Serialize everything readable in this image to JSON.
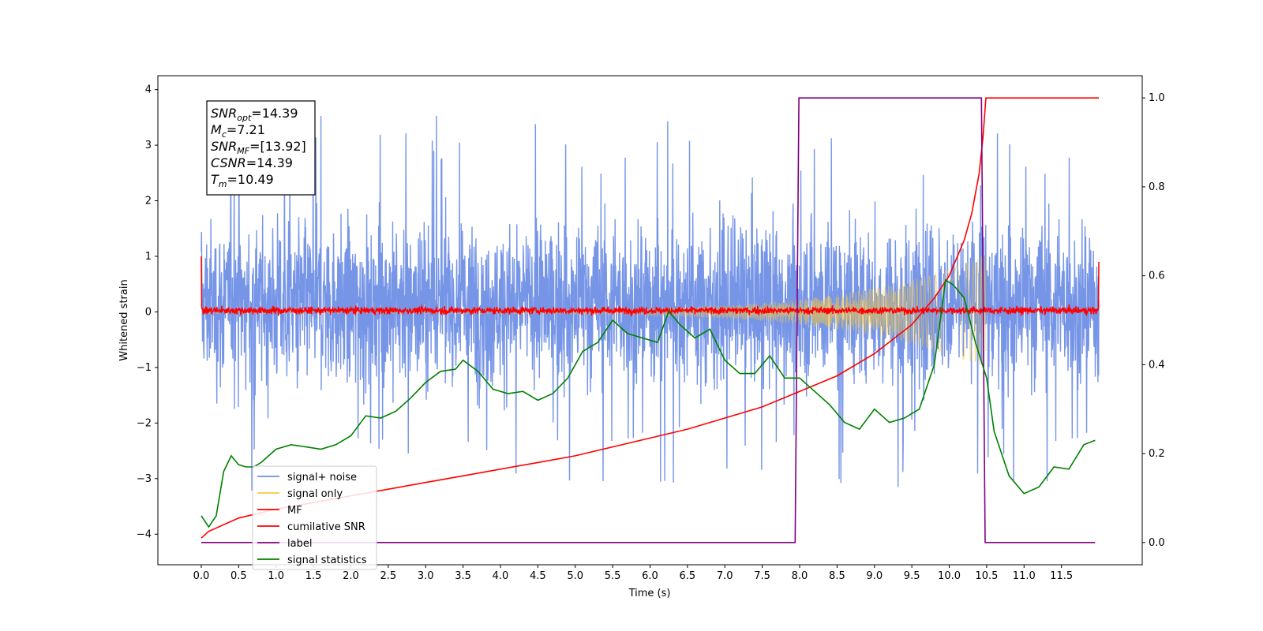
{
  "chart_data": {
    "type": "line",
    "title": "",
    "xlabel": "Time (s)",
    "ylabel": "Whitened strain",
    "xlim": [
      -0.58,
      12.58
    ],
    "ylim": [
      -4.55,
      4.25
    ],
    "y2lim": [
      -0.05,
      1.05
    ],
    "grid": false,
    "legend_position": "lower-left",
    "xticks": [
      "0.0",
      "0.5",
      "1.0",
      "1.5",
      "2.0",
      "2.5",
      "3.0",
      "3.5",
      "4.0",
      "4.5",
      "5.0",
      "5.5",
      "6.0",
      "6.5",
      "7.0",
      "7.5",
      "8.0",
      "8.5",
      "9.0",
      "9.5",
      "10.0",
      "10.5",
      "11.0",
      "11.5"
    ],
    "yticks": [
      "4",
      "3",
      "2",
      "1",
      "0",
      "−1",
      "−2",
      "−3",
      "−4"
    ],
    "y2ticks": [
      "1.0",
      "0.8",
      "0.6",
      "0.4",
      "0.2",
      "0.0"
    ],
    "annotation": {
      "lines": [
        {
          "label": "SNR",
          "sub": "opt",
          "value": "=14.39"
        },
        {
          "label": "M",
          "sub": "c",
          "value": "=7.21"
        },
        {
          "label": "SNR",
          "sub": "MF",
          "value": "=[13.92]"
        },
        {
          "label": "CSNR",
          "sub": "",
          "value": "=14.39"
        },
        {
          "label": "T",
          "sub": "m",
          "value": "=10.49"
        }
      ]
    },
    "series": [
      {
        "name": "signal+ noise",
        "axis": "left",
        "color": "#6f8fe6",
        "kind": "noise",
        "x_range": [
          0,
          12
        ],
        "band": [
          -1.1,
          1.4
        ],
        "spikes_high": 3.85,
        "spikes_low": -4.1
      },
      {
        "name": "signal only",
        "axis": "left",
        "color": "#f5c842",
        "kind": "chirp",
        "x_range": [
          0,
          10.49
        ],
        "envelope_end": 1.0
      },
      {
        "name": "MF",
        "axis": "left",
        "color": "#ff0000",
        "kind": "mf",
        "x_range": [
          0,
          12
        ],
        "start": 1.0,
        "band": [
          -0.1,
          0.15
        ]
      },
      {
        "name": "cumilative SNR",
        "axis": "right",
        "color": "#ff0000",
        "x": [
          0,
          0.1,
          0.5,
          1.0,
          1.5,
          2.0,
          2.5,
          3.0,
          3.5,
          4.0,
          4.5,
          5.0,
          5.5,
          6.0,
          6.5,
          7.0,
          7.5,
          8.0,
          8.5,
          9.0,
          9.5,
          9.8,
          10.0,
          10.2,
          10.3,
          10.4,
          10.45,
          10.49,
          12.0
        ],
        "y": [
          0.01,
          0.025,
          0.055,
          0.075,
          0.09,
          0.105,
          0.12,
          0.135,
          0.15,
          0.165,
          0.18,
          0.195,
          0.215,
          0.235,
          0.255,
          0.28,
          0.305,
          0.34,
          0.375,
          0.425,
          0.49,
          0.55,
          0.6,
          0.68,
          0.74,
          0.83,
          0.91,
          1.0,
          1.0
        ]
      },
      {
        "name": "label",
        "axis": "right",
        "color": "#800080",
        "x": [
          0,
          7.94,
          7.99,
          10.43,
          10.48,
          11.95
        ],
        "y": [
          0,
          0,
          1,
          1,
          0,
          0
        ]
      },
      {
        "name": "signal statistics",
        "axis": "right",
        "color": "#008000",
        "x": [
          0,
          0.1,
          0.2,
          0.3,
          0.4,
          0.5,
          0.6,
          0.7,
          0.8,
          1.0,
          1.2,
          1.4,
          1.6,
          1.8,
          2.0,
          2.2,
          2.4,
          2.6,
          2.8,
          3.0,
          3.2,
          3.4,
          3.5,
          3.7,
          3.9,
          4.1,
          4.3,
          4.5,
          4.7,
          4.9,
          5.1,
          5.3,
          5.5,
          5.7,
          5.9,
          6.1,
          6.25,
          6.4,
          6.6,
          6.8,
          7.0,
          7.2,
          7.4,
          7.6,
          7.8,
          8.0,
          8.2,
          8.4,
          8.6,
          8.8,
          9.0,
          9.2,
          9.4,
          9.6,
          9.8,
          9.95,
          10.05,
          10.2,
          10.35,
          10.5,
          10.6,
          10.8,
          11.0,
          11.2,
          11.4,
          11.6,
          11.8,
          11.95
        ],
        "y": [
          0.06,
          0.035,
          0.06,
          0.16,
          0.195,
          0.175,
          0.17,
          0.17,
          0.18,
          0.21,
          0.22,
          0.215,
          0.21,
          0.22,
          0.24,
          0.285,
          0.28,
          0.295,
          0.325,
          0.36,
          0.385,
          0.39,
          0.41,
          0.385,
          0.345,
          0.335,
          0.34,
          0.32,
          0.335,
          0.37,
          0.43,
          0.45,
          0.5,
          0.47,
          0.46,
          0.45,
          0.52,
          0.49,
          0.46,
          0.48,
          0.41,
          0.38,
          0.38,
          0.42,
          0.37,
          0.37,
          0.34,
          0.31,
          0.27,
          0.255,
          0.3,
          0.27,
          0.28,
          0.3,
          0.4,
          0.59,
          0.58,
          0.55,
          0.45,
          0.37,
          0.25,
          0.15,
          0.11,
          0.125,
          0.17,
          0.165,
          0.22,
          0.23
        ]
      }
    ]
  }
}
